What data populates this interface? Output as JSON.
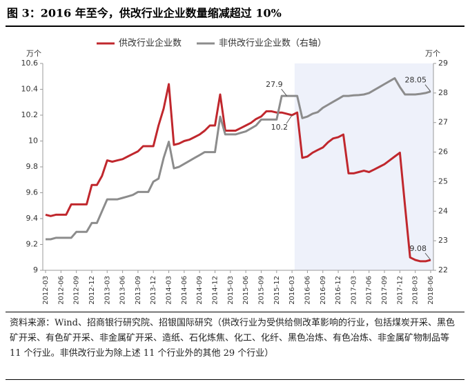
{
  "chart_data": {
    "type": "line",
    "title": "图 3：2016 年至今，供改行业企业数量缩减超过 10%",
    "y_unit": "万个",
    "y2_unit": "万个",
    "source_note": "资料来源：Wind、招商银行研究院、招银国际研究（供改行业为受供给侧改革影响的行业，包括煤炭开采、黑色矿开采、有色矿开采、非金属矿开采、造纸、石化炼焦、化工、化纤、黑色冶炼、有色冶炼、非金属矿物制品等 11 个行业。非供改行业为除上述 11 个行业外的其他 29 个行业）",
    "shade_start": "2016-03",
    "categories": [
      "2012-03",
      null,
      null,
      "2012-06",
      null,
      null,
      "2012-09",
      null,
      null,
      "2012-12",
      null,
      null,
      "2013-03",
      null,
      null,
      "2013-06",
      null,
      null,
      "2013-09",
      null,
      null,
      "2013-12",
      null,
      null,
      "2014-03",
      null,
      null,
      "2014-06",
      null,
      null,
      "2014-09",
      null,
      null,
      "2014-12",
      null,
      null,
      "2015-03",
      null,
      null,
      "2015-06",
      null,
      null,
      "2015-09",
      null,
      null,
      "2015-12",
      null,
      null,
      "2016-03",
      null,
      null,
      "2016-06",
      null,
      null,
      "2016-09",
      null,
      null,
      "2016-12",
      null,
      null,
      "2017-03",
      null,
      null,
      "2017-06",
      null,
      null,
      "2017-09",
      null,
      null,
      "2017-12",
      null,
      null,
      "2018-03",
      null,
      null,
      "2018-06"
    ],
    "ylim": [
      9,
      10.6
    ],
    "yticks": [
      9,
      9.2,
      9.4,
      9.6,
      9.8,
      10,
      10.2,
      10.4,
      10.6
    ],
    "y2lim": [
      22,
      29
    ],
    "y2ticks": [
      22,
      23,
      24,
      25,
      26,
      27,
      28,
      29
    ],
    "grid": false,
    "legend": "top",
    "series": [
      {
        "name": "供改行业企业数",
        "color": "#c0272d",
        "values": [
          9.43,
          9.42,
          9.43,
          9.43,
          9.43,
          9.51,
          9.51,
          9.51,
          9.51,
          9.66,
          9.66,
          9.73,
          9.85,
          9.84,
          9.85,
          9.86,
          9.88,
          9.9,
          9.92,
          9.96,
          9.96,
          9.96,
          10.12,
          10.25,
          10.44,
          9.97,
          9.98,
          10.0,
          10.01,
          10.03,
          10.05,
          10.08,
          10.12,
          10.12,
          10.36,
          10.08,
          10.08,
          10.08,
          10.1,
          10.12,
          10.14,
          10.17,
          10.19,
          10.23,
          10.23,
          10.22,
          10.22,
          10.21,
          10.2,
          10.22,
          9.87,
          9.88,
          9.91,
          9.93,
          9.95,
          9.99,
          10.02,
          10.03,
          10.05,
          9.75,
          9.75,
          9.76,
          9.77,
          9.76,
          9.78,
          9.8,
          9.82,
          9.85,
          9.88,
          9.91,
          9.5,
          9.1,
          9.08,
          9.07,
          9.07,
          9.08
        ],
        "value_labels": [
          null,
          null,
          null,
          null,
          null,
          null,
          null,
          null,
          null,
          null,
          null,
          null,
          null,
          null,
          null,
          null,
          null,
          null,
          null,
          null,
          null,
          null,
          null,
          null,
          null,
          null,
          null,
          null,
          null,
          null,
          null,
          null,
          null,
          null,
          null,
          null,
          null,
          null,
          null,
          null,
          null,
          null,
          null,
          null,
          null,
          null,
          null,
          null,
          "10.2",
          null,
          null,
          null,
          null,
          null,
          null,
          null,
          null,
          null,
          null,
          null,
          null,
          null,
          null,
          null,
          null,
          null,
          null,
          null,
          null,
          null,
          null,
          null,
          null,
          null,
          null,
          "9.08"
        ]
      },
      {
        "name": "非供改行业企业数（右轴）",
        "color": "#8c8c8c",
        "axis": "y2",
        "values": [
          23.05,
          23.05,
          23.1,
          23.1,
          23.1,
          23.1,
          23.3,
          23.3,
          23.3,
          23.6,
          23.6,
          24.0,
          24.4,
          24.4,
          24.4,
          24.45,
          24.5,
          24.55,
          24.65,
          24.65,
          24.65,
          25.0,
          25.1,
          25.8,
          26.35,
          25.45,
          25.5,
          25.6,
          25.7,
          25.8,
          25.9,
          26.0,
          26.0,
          26.0,
          27.2,
          26.6,
          26.6,
          26.6,
          26.65,
          26.7,
          26.8,
          26.9,
          27.1,
          27.1,
          27.1,
          27.1,
          27.9,
          27.9,
          27.9,
          27.9,
          27.15,
          27.2,
          27.3,
          27.35,
          27.5,
          27.6,
          27.7,
          27.8,
          27.9,
          27.9,
          27.92,
          27.93,
          27.95,
          28.0,
          28.1,
          28.2,
          28.3,
          28.4,
          28.5,
          28.2,
          27.95,
          27.95,
          27.95,
          27.97,
          28.0,
          28.05
        ],
        "value_labels": [
          null,
          null,
          null,
          null,
          null,
          null,
          null,
          null,
          null,
          null,
          null,
          null,
          null,
          null,
          null,
          null,
          null,
          null,
          null,
          null,
          null,
          null,
          null,
          null,
          null,
          null,
          null,
          null,
          null,
          null,
          null,
          null,
          null,
          null,
          null,
          null,
          null,
          null,
          null,
          null,
          null,
          null,
          null,
          null,
          null,
          null,
          null,
          "27.9",
          null,
          null,
          null,
          null,
          null,
          null,
          null,
          null,
          null,
          null,
          null,
          null,
          null,
          null,
          null,
          null,
          null,
          null,
          null,
          null,
          null,
          null,
          null,
          null,
          null,
          null,
          null,
          "28.05"
        ]
      }
    ]
  }
}
